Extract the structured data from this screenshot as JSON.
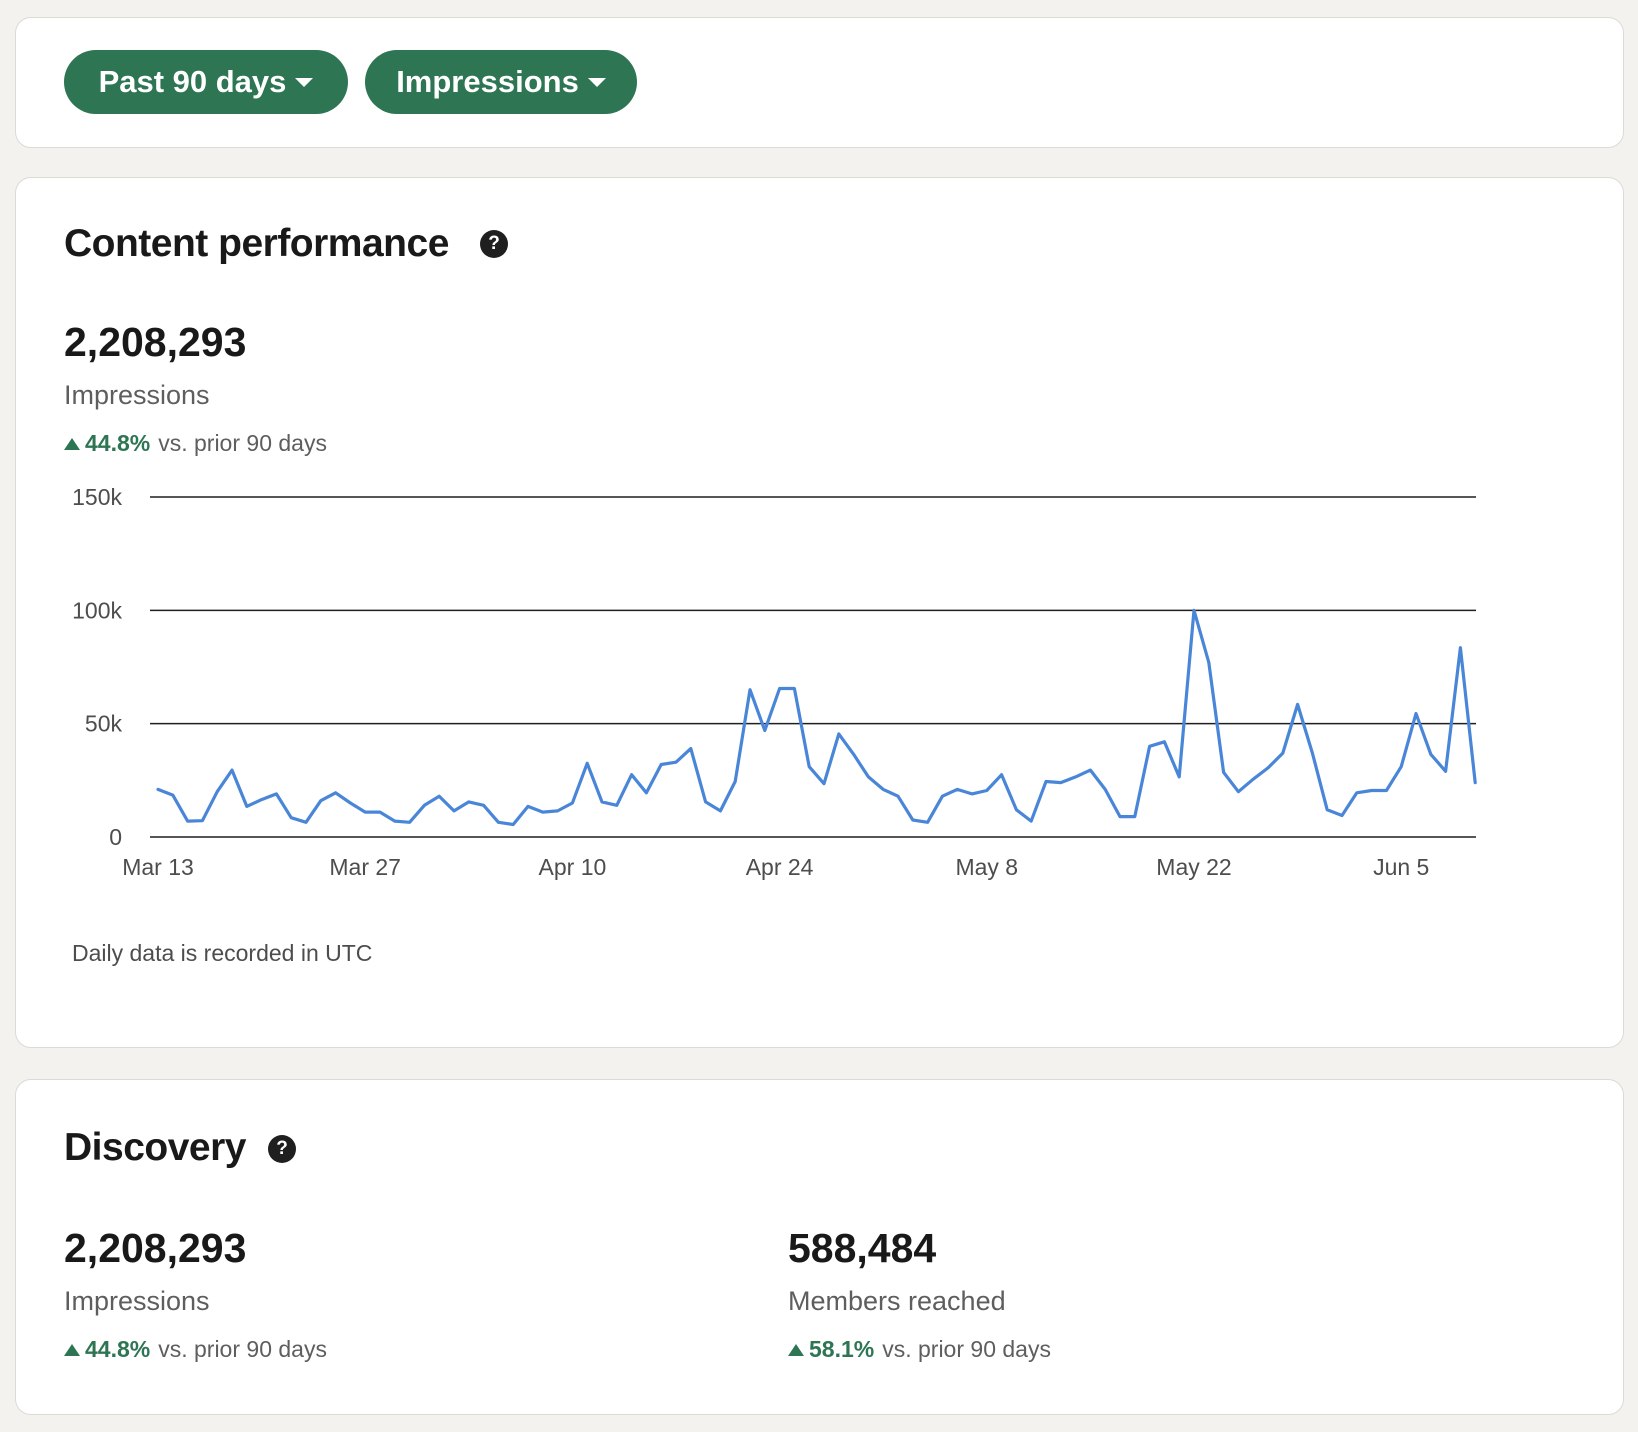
{
  "filters": {
    "date_range": "Past 90 days",
    "metric": "Impressions"
  },
  "content_performance": {
    "title": "Content performance",
    "help_glyph": "?",
    "total": "2,208,293",
    "total_label": "Impressions",
    "change_pct": "44.8%",
    "change_text": "vs. prior 90 days",
    "note": "Daily data is recorded in UTC"
  },
  "discovery": {
    "title": "Discovery",
    "help_glyph": "?",
    "impressions": {
      "value": "2,208,293",
      "label": "Impressions",
      "change_pct": "44.8%",
      "change_text": "vs. prior 90 days"
    },
    "members": {
      "value": "588,484",
      "label": "Members reached",
      "change_pct": "58.1%",
      "change_text": "vs. prior 90 days"
    }
  },
  "colors": {
    "accent_green": "#2e7553",
    "line_blue": "#4a86d8"
  },
  "chart_data": {
    "type": "line",
    "title": "",
    "xlabel": "",
    "ylabel": "",
    "ylim": [
      0,
      150000
    ],
    "y_ticks": [
      0,
      50000,
      100000,
      150000
    ],
    "y_tick_labels": [
      "0",
      "50k",
      "100k",
      "150k"
    ],
    "x_tick_labels": [
      "Mar 13",
      "Mar 27",
      "Apr 10",
      "Apr 24",
      "May 8",
      "May 22",
      "Jun 5"
    ],
    "x_tick_days": [
      0,
      14,
      28,
      42,
      56,
      70,
      84
    ],
    "grid": true,
    "series": [
      {
        "values": [
          21000,
          18500,
          7000,
          7200,
          20000,
          29500,
          13500,
          16500,
          19000,
          8500,
          6500,
          16000,
          19500,
          15000,
          11000,
          11000,
          7000,
          6500,
          14000,
          18000,
          11500,
          15500,
          14000,
          6500,
          5500,
          13500,
          11000,
          11500,
          15000,
          32500,
          15500,
          14000,
          27500,
          19500,
          32000,
          33000,
          39000,
          15500,
          11500,
          24500,
          65000,
          47000,
          65500,
          65500,
          31000,
          23500,
          45500,
          36500,
          26500,
          21000,
          18000,
          7500,
          6500,
          18000,
          21000,
          19000,
          20500,
          27500,
          12000,
          7000,
          24500,
          24000,
          26500,
          29500,
          21000,
          9000,
          9000,
          40000,
          42000,
          26500,
          100000,
          77000,
          28500,
          20000,
          25500,
          30500,
          37000,
          58500,
          37000,
          12000,
          9500,
          19500,
          20500,
          20500,
          31000,
          54500,
          36500,
          29000,
          83500,
          24000
        ]
      }
    ]
  }
}
